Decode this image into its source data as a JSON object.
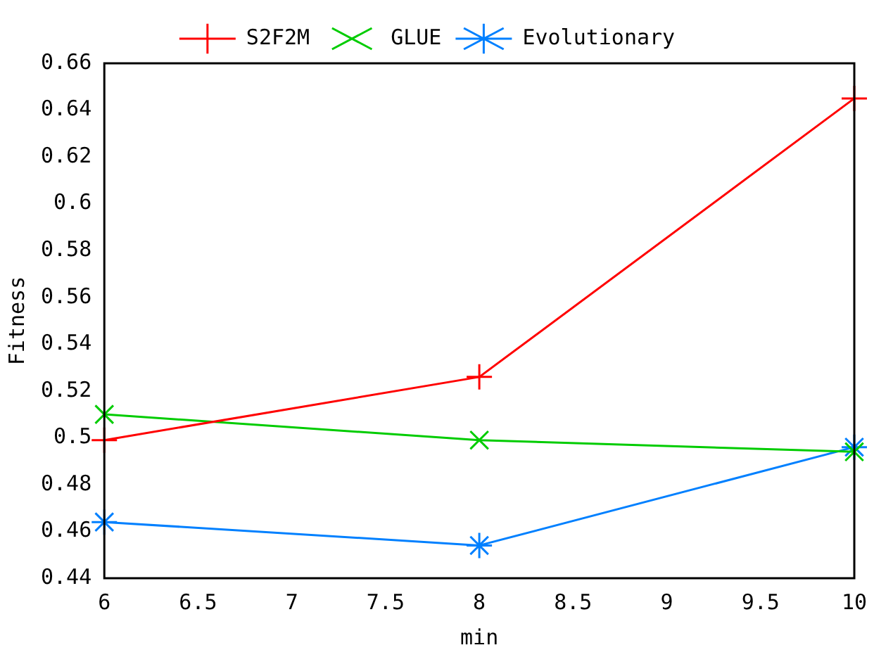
{
  "chart_data": {
    "type": "line",
    "xlabel": "min",
    "ylabel": "Fitness",
    "x": [
      6,
      8,
      10
    ],
    "series": [
      {
        "name": "S2F2M",
        "color": "#ff0000",
        "marker": "cross",
        "values": [
          0.499,
          0.526,
          0.645
        ]
      },
      {
        "name": "GLUE",
        "color": "#00cc00",
        "marker": "cross",
        "values": [
          0.51,
          0.499,
          0.494
        ]
      },
      {
        "name": "Evolutionary",
        "color": "#0080ff",
        "marker": "cross",
        "values": [
          0.464,
          0.454,
          0.496
        ]
      }
    ],
    "xlim": [
      6,
      10
    ],
    "xticks": [
      6,
      {
        "value": 6.5,
        "label": "6.5"
      },
      7,
      {
        "value": 7.5,
        "label": "7.5"
      },
      8,
      {
        "value": 8.5,
        "label": "8.5"
      },
      9,
      {
        "value": 9.5,
        "label": "9.5"
      },
      10
    ],
    "ylim": [
      0.44,
      0.66
    ],
    "yticks": [
      0.44,
      0.46,
      0.48,
      0.5,
      0.52,
      0.54,
      0.56,
      0.58,
      0.6,
      0.62,
      0.64,
      0.66
    ],
    "grid": false,
    "legend": "top"
  }
}
